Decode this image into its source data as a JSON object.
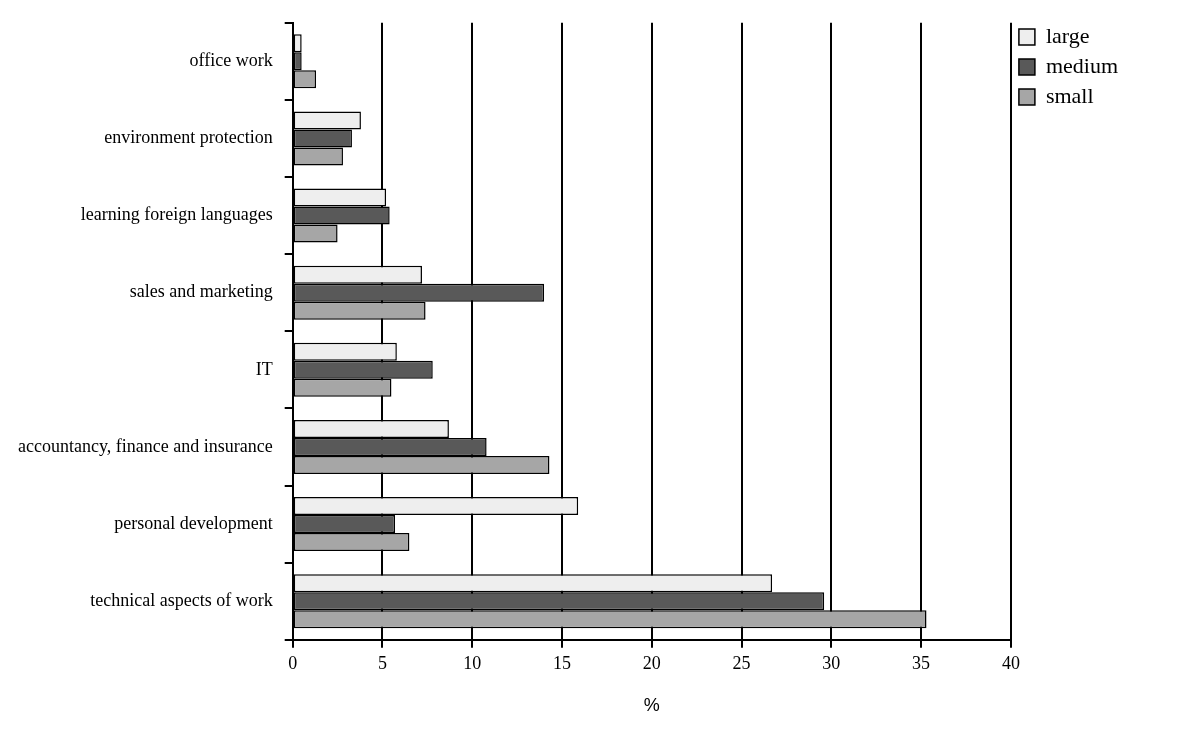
{
  "chart_data": {
    "type": "bar",
    "orientation": "horizontal",
    "xlabel": "%",
    "categories": [
      "office work",
      "environment protection",
      "learning foreign languages",
      "sales and marketing",
      "IT",
      "accountancy, finance and insurance",
      "personal development",
      "technical aspects of work"
    ],
    "series": [
      {
        "name": "large",
        "color": "#eeeeee",
        "values": [
          0.5,
          3.8,
          5.2,
          7.2,
          5.8,
          8.7,
          15.9,
          26.7
        ]
      },
      {
        "name": "medium",
        "color": "#595959",
        "values": [
          0.5,
          3.3,
          5.4,
          14.0,
          7.8,
          10.8,
          5.7,
          29.6
        ]
      },
      {
        "name": "small",
        "color": "#a6a6a6",
        "values": [
          1.3,
          2.8,
          2.5,
          7.4,
          5.5,
          14.3,
          6.5,
          35.3
        ]
      }
    ],
    "xlim": [
      0,
      40
    ],
    "xticks": [
      0,
      5,
      10,
      15,
      20,
      25,
      30,
      35,
      40
    ],
    "grid": "x",
    "legend": "right"
  }
}
